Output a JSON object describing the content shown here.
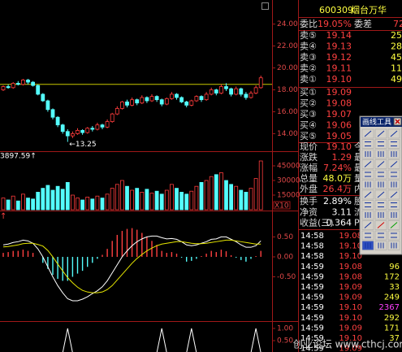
{
  "chart_data": [
    {
      "type": "candlestick",
      "open": [
        18.0,
        18.3,
        18.2,
        18.6,
        18.5,
        18.9,
        18.7,
        18.4,
        17.6,
        17.0,
        16.2,
        15.5,
        14.8,
        14.2,
        13.8,
        14.0,
        14.3,
        14.1,
        14.5,
        14.4,
        14.8,
        14.6,
        15.1,
        15.8,
        16.3,
        16.9,
        16.6,
        17.1,
        16.8,
        17.3,
        17.0,
        17.4,
        17.1,
        16.7,
        17.2,
        17.6,
        17.3,
        16.9,
        16.6,
        17.0,
        17.4,
        17.1,
        17.6,
        18.0,
        17.7,
        18.3,
        18.1,
        17.6,
        18.1,
        17.6,
        17.3,
        17.7,
        18.2
      ],
      "close": [
        18.3,
        18.2,
        18.6,
        18.5,
        18.9,
        18.7,
        18.4,
        17.6,
        17.0,
        16.2,
        15.5,
        14.8,
        14.2,
        13.8,
        14.0,
        14.3,
        14.1,
        14.5,
        14.4,
        14.8,
        14.6,
        15.1,
        15.8,
        16.3,
        16.9,
        16.6,
        17.1,
        16.8,
        17.3,
        17.0,
        17.4,
        17.1,
        16.7,
        17.2,
        17.6,
        17.3,
        16.9,
        16.6,
        17.0,
        17.4,
        17.1,
        17.6,
        18.0,
        17.7,
        18.3,
        18.1,
        17.6,
        18.1,
        17.6,
        17.3,
        17.7,
        18.2,
        19.1
      ],
      "high": [
        18.4,
        18.5,
        18.7,
        18.8,
        19.0,
        19.0,
        18.8,
        18.5,
        17.7,
        17.1,
        16.3,
        15.6,
        14.9,
        14.4,
        14.2,
        14.5,
        14.4,
        14.6,
        14.7,
        15.0,
        14.9,
        15.3,
        15.9,
        16.5,
        17.0,
        17.1,
        17.3,
        17.2,
        17.5,
        17.4,
        17.6,
        17.5,
        17.2,
        17.3,
        17.8,
        17.7,
        17.4,
        17.0,
        17.1,
        17.5,
        17.5,
        17.8,
        18.2,
        18.1,
        18.5,
        18.6,
        18.2,
        18.3,
        18.2,
        17.8,
        17.9,
        18.4,
        19.3
      ],
      "low": [
        17.9,
        18.1,
        18.1,
        18.4,
        18.4,
        18.5,
        18.3,
        17.5,
        16.9,
        16.0,
        15.3,
        14.6,
        14.0,
        13.25,
        13.6,
        13.9,
        13.9,
        14.0,
        14.2,
        14.3,
        14.4,
        14.5,
        15.0,
        15.7,
        16.2,
        16.4,
        16.5,
        16.6,
        16.7,
        16.8,
        16.9,
        16.9,
        16.5,
        16.6,
        17.1,
        17.1,
        16.8,
        16.4,
        16.5,
        16.9,
        16.9,
        17.0,
        17.5,
        17.5,
        17.6,
        17.9,
        17.4,
        17.5,
        17.4,
        17.1,
        17.2,
        17.6,
        18.1
      ],
      "up_color": "#ff3c3c",
      "down_color": "#54fcfc",
      "ylim": [
        12.4,
        26.2
      ],
      "yticks": [
        {
          "value": 24,
          "label": "24.00"
        },
        {
          "value": 22,
          "label": "22.00"
        },
        {
          "value": 20,
          "label": "20.00"
        },
        {
          "value": 18,
          "label": "18.00"
        },
        {
          "value": 16,
          "label": "16.00"
        },
        {
          "value": 14,
          "label": "14.00"
        }
      ],
      "reference_line": {
        "value": 18.5,
        "color": "#c8c800"
      },
      "annotation": {
        "label": "←13.25",
        "value": 13.25
      }
    },
    {
      "type": "volume",
      "label": "3897.59↑",
      "values": [
        12000,
        10000,
        14000,
        9000,
        16000,
        12000,
        11000,
        18000,
        22000,
        25000,
        20000,
        24000,
        21000,
        28000,
        15000,
        12000,
        10000,
        13000,
        11000,
        14000,
        12000,
        16000,
        22000,
        26000,
        30000,
        24000,
        20000,
        22000,
        18000,
        21000,
        17000,
        19000,
        16000,
        20000,
        26000,
        22000,
        18000,
        16000,
        19000,
        24000,
        28000,
        30000,
        34000,
        36000,
        38000,
        30000,
        26000,
        24000,
        20000,
        18000,
        22000,
        32000,
        50000
      ],
      "ylim": [
        0,
        59167
      ],
      "yticks": [
        15000,
        30000,
        45000
      ],
      "unit_label": "X10"
    },
    {
      "type": "macd",
      "label": "↑",
      "histogram": [
        0.1,
        0.12,
        0.15,
        0.15,
        0.18,
        0.15,
        0.1,
        0.0,
        -0.15,
        -0.3,
        -0.45,
        -0.55,
        -0.6,
        -0.6,
        -0.5,
        -0.42,
        -0.35,
        -0.25,
        -0.15,
        -0.05,
        0.05,
        0.2,
        0.4,
        0.55,
        0.65,
        0.7,
        0.72,
        0.68,
        0.6,
        0.5,
        0.4,
        0.3,
        0.15,
        0.1,
        0.12,
        0.08,
        -0.02,
        -0.12,
        -0.1,
        -0.05,
        0.02,
        0.08,
        0.15,
        0.12,
        0.18,
        0.14,
        0.04,
        -0.02,
        -0.08,
        -0.12,
        -0.05,
        0.02,
        0.15
      ],
      "lines": [
        {
          "color": "#ffffff",
          "values": [
            0.3,
            0.32,
            0.36,
            0.38,
            0.42,
            0.4,
            0.34,
            0.2,
            0.0,
            -0.25,
            -0.5,
            -0.72,
            -0.9,
            -1.05,
            -1.1,
            -1.1,
            -1.06,
            -1.0,
            -0.92,
            -0.85,
            -0.75,
            -0.6,
            -0.4,
            -0.2,
            0.0,
            0.15,
            0.28,
            0.38,
            0.45,
            0.5,
            0.52,
            0.52,
            0.48,
            0.45,
            0.46,
            0.44,
            0.38,
            0.3,
            0.28,
            0.3,
            0.34,
            0.38,
            0.44,
            0.45,
            0.5,
            0.5,
            0.44,
            0.38,
            0.3,
            0.24,
            0.24,
            0.28,
            0.4
          ]
        },
        {
          "color": "#e6e600",
          "values": [
            0.25,
            0.26,
            0.28,
            0.3,
            0.33,
            0.34,
            0.34,
            0.31,
            0.27,
            0.16,
            0.0,
            -0.18,
            -0.35,
            -0.52,
            -0.65,
            -0.76,
            -0.84,
            -0.88,
            -0.9,
            -0.9,
            -0.88,
            -0.82,
            -0.72,
            -0.58,
            -0.44,
            -0.3,
            -0.16,
            -0.04,
            0.06,
            0.15,
            0.22,
            0.28,
            0.32,
            0.34,
            0.36,
            0.38,
            0.38,
            0.36,
            0.34,
            0.33,
            0.33,
            0.34,
            0.36,
            0.38,
            0.4,
            0.42,
            0.42,
            0.4,
            0.38,
            0.36,
            0.34,
            0.32,
            0.32
          ]
        }
      ],
      "ylim": [
        -1.61,
        1.14
      ],
      "yticks": [
        {
          "value": 0.5,
          "label": "0.50"
        },
        {
          "value": 0,
          "label": "0.00"
        },
        {
          "value": -0.5,
          "label": "-0.50"
        }
      ]
    },
    {
      "type": "signal",
      "color": "#ffffff",
      "values": [
        0,
        0,
        0,
        0,
        0,
        0,
        0,
        0,
        0,
        0,
        0,
        0,
        0,
        1,
        0,
        0,
        0,
        0,
        0,
        0,
        0,
        0,
        0,
        0,
        0,
        0,
        0,
        0,
        0,
        0,
        0,
        0,
        1,
        0,
        0,
        0,
        0,
        0,
        1,
        0,
        0,
        0,
        0,
        0,
        0,
        0,
        0,
        0,
        0,
        0,
        0,
        1,
        0
      ],
      "ylim": [
        0,
        1.3
      ],
      "yticks": [
        {
          "value": 1,
          "label": "1.00"
        },
        {
          "value": 0.5,
          "label": "0.50"
        }
      ]
    }
  ],
  "quote": {
    "code": "600309",
    "name": "烟台万华",
    "ratio": [
      "委比",
      "19.05%",
      "委差",
      "72"
    ],
    "sell": [
      [
        "卖⑤",
        "19.14",
        "25"
      ],
      [
        "卖④",
        "19.13",
        "28"
      ],
      [
        "卖③",
        "19.12",
        "45"
      ],
      [
        "卖②",
        "19.11",
        "11"
      ],
      [
        "卖①",
        "19.10",
        "49"
      ]
    ],
    "buy": [
      [
        "买①",
        "19.09"
      ],
      [
        "买②",
        "19.08"
      ],
      [
        "买③",
        "19.07"
      ],
      [
        "买④",
        "19.06"
      ],
      [
        "买⑤",
        "19.05"
      ]
    ],
    "stats1": [
      [
        "现价",
        "19.10",
        "今"
      ],
      [
        "涨跌",
        "1.29",
        "最"
      ],
      [
        "涨幅",
        "7.24%",
        "最"
      ],
      [
        "总量",
        "48.0万",
        "量"
      ],
      [
        "外盘",
        "26.4万",
        "内"
      ]
    ],
    "stats2": [
      [
        "换手",
        "2.89%",
        "股"
      ],
      [
        "净资",
        "3.11",
        "流"
      ],
      [
        "收益(三)",
        "0.364",
        "P"
      ]
    ],
    "ticks": [
      [
        "14:58",
        "19.08"
      ],
      [
        "14:58",
        "19.10"
      ],
      [
        "14:58",
        "19.10"
      ],
      [
        "14:59",
        "19.08",
        "96"
      ],
      [
        "14:59",
        "19.08",
        "172"
      ],
      [
        "14:59",
        "19.09",
        "33"
      ],
      [
        "14:59",
        "19.09",
        "249"
      ],
      [
        "14:59",
        "19.10",
        "2367"
      ],
      [
        "14:59",
        "19.10",
        "292"
      ],
      [
        "14:59",
        "19.09",
        "171"
      ],
      [
        "14:59",
        "19.10",
        "37"
      ],
      [
        "14:59",
        "19.09"
      ]
    ]
  },
  "toolbar": {
    "title": "画线工具"
  },
  "watermark": "创业论坛 www.cthcj.com"
}
